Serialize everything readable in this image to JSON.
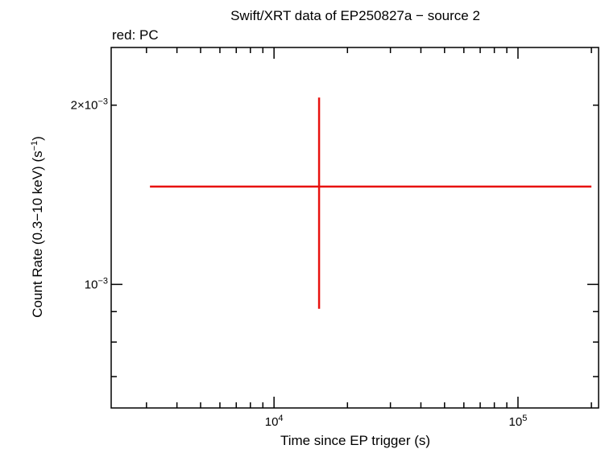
{
  "chart_data": {
    "type": "scatter",
    "title": "Swift/XRT data of EP250827a − source 2",
    "legend_text": "red: PC",
    "xlabel": "Time since EP trigger (s)",
    "ylabel_main": "Count Rate (0.3−10 keV) (s",
    "ylabel_sup": "−1",
    "ylabel_close": ")",
    "x_scale": "log",
    "y_scale": "log",
    "xlim": [
      2150,
      214000
    ],
    "ylim": [
      0.00062,
      0.0025
    ],
    "x_ticks": [
      {
        "value": 10000,
        "base": "10",
        "exp": "4"
      },
      {
        "value": 100000,
        "base": "10",
        "exp": "5"
      }
    ],
    "y_ticks": [
      {
        "value": 0.001,
        "base": "10",
        "exp": "−3"
      },
      {
        "value": 0.002,
        "base": "2×10",
        "exp": "−3"
      }
    ],
    "series": [
      {
        "mode": "PC",
        "color": "#e8110f",
        "points": [
          {
            "x": 15300,
            "x_lo": 3100,
            "x_hi": 200000,
            "y": 0.00146,
            "y_lo": 0.00091,
            "y_hi": 0.00206
          }
        ]
      }
    ]
  }
}
